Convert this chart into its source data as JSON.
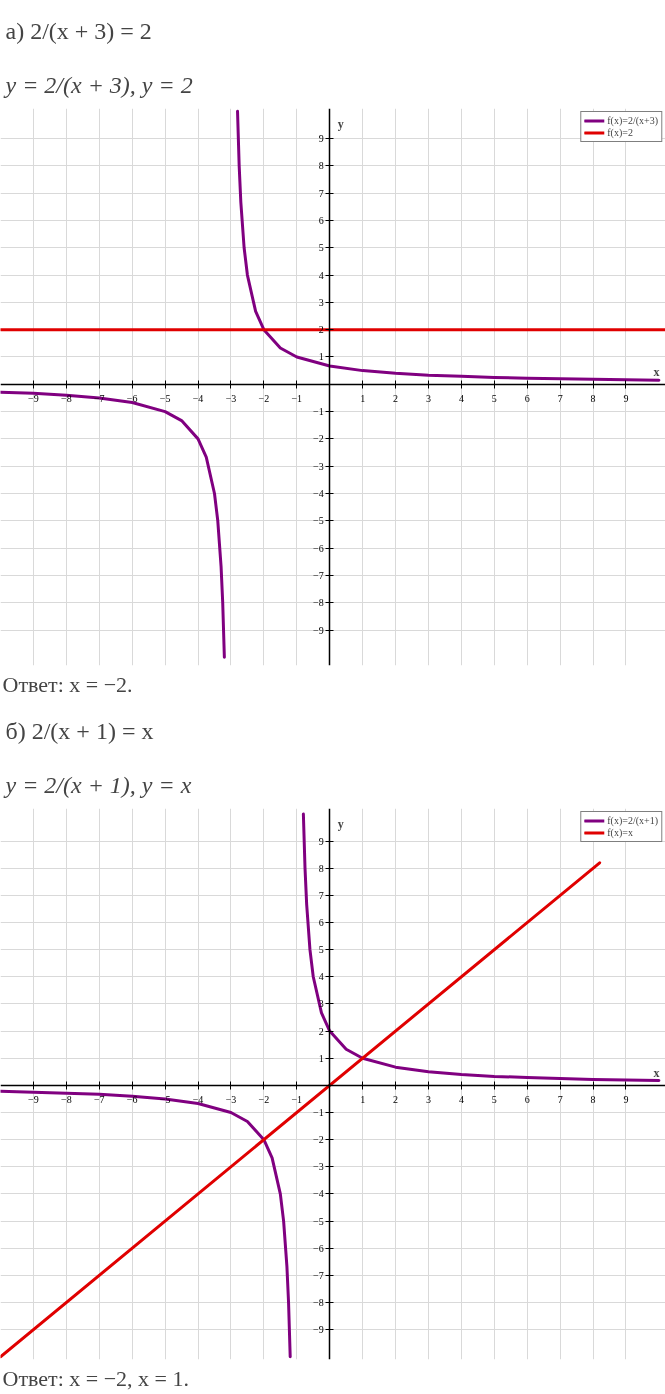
{
  "chart_data": [
    {
      "type": "line",
      "title": "а) 2/(x + 3) = 2",
      "subtitle": "y = 2/(x + 3), y = 2",
      "xlabel": "x",
      "ylabel": "y",
      "annotations": [
        "Ответ: x = −2."
      ],
      "xlim": [
        -10,
        10.2
      ],
      "ylim": [
        -10.3,
        10.1
      ],
      "xticks": [
        -9,
        -8,
        -7,
        -6,
        -5,
        -4,
        -3,
        -2,
        -1,
        1,
        2,
        3,
        4,
        5,
        6,
        7,
        8,
        9
      ],
      "yticks": [
        -9,
        -8,
        -7,
        -6,
        -5,
        -4,
        -3,
        -2,
        -1,
        1,
        2,
        3,
        4,
        5,
        6,
        7,
        8,
        9
      ],
      "grid": true,
      "legend": "top right",
      "series": [
        {
          "name": "f(x)=2/(x+3)",
          "color": "#800080",
          "x": [
            -10,
            -9,
            -8,
            -7,
            -6,
            -5,
            -4.5,
            -4,
            -3.75,
            -3.5,
            -3.4,
            -3.3,
            -3.25,
            -3.2,
            -3,
            -2.8,
            -2.75,
            -2.7,
            -2.6,
            -2.5,
            -2.25,
            -2,
            -1.5,
            -1,
            0,
            1,
            2,
            3,
            4,
            5,
            6,
            7,
            8,
            9,
            10
          ],
          "values": [
            -0.29,
            -0.33,
            -0.4,
            -0.5,
            -0.67,
            -1,
            -1.33,
            -2,
            -2.67,
            -4,
            -5,
            -6.67,
            -8,
            -10,
            null,
            10,
            8,
            6.67,
            5,
            4,
            2.67,
            2,
            1.33,
            1,
            0.67,
            0.5,
            0.4,
            0.33,
            0.29,
            0.25,
            0.22,
            0.2,
            0.18,
            0.17,
            0.15
          ]
        },
        {
          "name": "f(x)=2",
          "color": "#e00000",
          "x": [
            -10,
            10.2
          ],
          "values": [
            2,
            2
          ]
        }
      ]
    },
    {
      "type": "line",
      "title": "б) 2/(x + 1) = x",
      "subtitle": "y = 2/(x + 1), y = x",
      "xlabel": "x",
      "ylabel": "y",
      "annotations": [
        "Ответ: x = −2, x = 1."
      ],
      "xlim": [
        -10,
        10.2
      ],
      "ylim": [
        -10.1,
        10.2
      ],
      "xticks": [
        -9,
        -8,
        -7,
        -6,
        -5,
        -4,
        -3,
        -2,
        -1,
        1,
        2,
        3,
        4,
        5,
        6,
        7,
        8,
        9
      ],
      "yticks": [
        -9,
        -8,
        -7,
        -6,
        -5,
        -4,
        -3,
        -2,
        -1,
        1,
        2,
        3,
        4,
        5,
        6,
        7,
        8,
        9
      ],
      "grid": true,
      "legend": "top right",
      "series": [
        {
          "name": "f(x)=2/(x+1)",
          "color": "#800080",
          "x": [
            -10,
            -9,
            -8,
            -7,
            -6,
            -5,
            -4,
            -3,
            -2.5,
            -2,
            -1.75,
            -1.5,
            -1.4,
            -1.3,
            -1.25,
            -1.2,
            -1,
            -0.8,
            -0.75,
            -0.7,
            -0.6,
            -0.5,
            -0.25,
            0,
            0.5,
            1,
            2,
            3,
            4,
            5,
            6,
            7,
            8,
            9,
            10
          ],
          "values": [
            -0.22,
            -0.25,
            -0.29,
            -0.33,
            -0.4,
            -0.5,
            -0.67,
            -1,
            -1.33,
            -2,
            -2.67,
            -4,
            -5,
            -6.67,
            -8,
            -10,
            null,
            10,
            8,
            6.67,
            5,
            4,
            2.67,
            2,
            1.33,
            1,
            0.67,
            0.5,
            0.4,
            0.33,
            0.29,
            0.25,
            0.22,
            0.2,
            0.18
          ]
        },
        {
          "name": "f(x)=x",
          "color": "#e00000",
          "x": [
            -10,
            8.2
          ],
          "values": [
            -10,
            8.2
          ]
        }
      ]
    }
  ]
}
